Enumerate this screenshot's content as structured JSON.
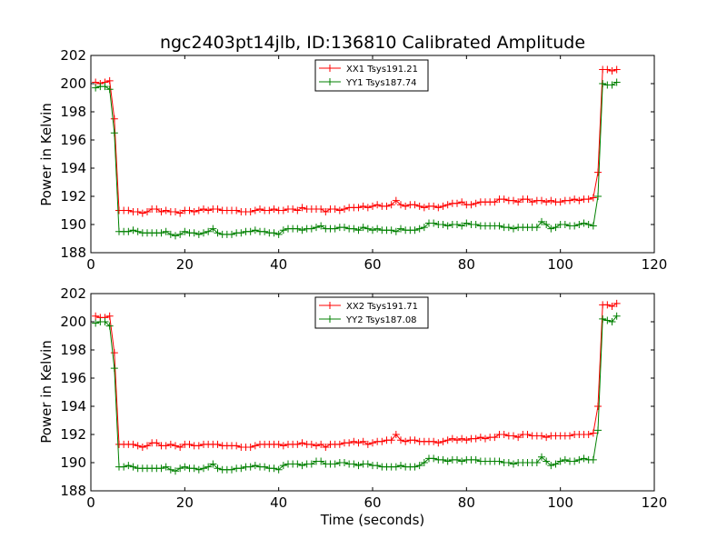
{
  "chart_data": [
    {
      "type": "line",
      "title": "ngc2403pt14jlb, ID:136810 Calibrated Amplitude",
      "xlabel": "",
      "ylabel": "Power in Kelvin",
      "xlim": [
        0,
        120
      ],
      "ylim": [
        188,
        202
      ],
      "xticks": [
        "0",
        "20",
        "40",
        "60",
        "80",
        "100",
        "120"
      ],
      "yticks": [
        "188",
        "190",
        "192",
        "194",
        "196",
        "198",
        "200",
        "202"
      ],
      "grid": false,
      "legend_position": "top-center",
      "series": [
        {
          "name": "XX1 Tsys191.21",
          "color": "#ff0000",
          "x": [
            1,
            2,
            3,
            4,
            5,
            6,
            7,
            8,
            9,
            10,
            11,
            12,
            13,
            14,
            15,
            16,
            17,
            18,
            19,
            20,
            21,
            22,
            23,
            24,
            25,
            26,
            27,
            28,
            29,
            30,
            31,
            32,
            33,
            34,
            35,
            36,
            37,
            38,
            39,
            40,
            41,
            42,
            43,
            44,
            45,
            46,
            47,
            48,
            49,
            50,
            51,
            52,
            53,
            54,
            55,
            56,
            57,
            58,
            59,
            60,
            61,
            62,
            63,
            64,
            65,
            66,
            67,
            68,
            69,
            70,
            71,
            72,
            73,
            74,
            75,
            76,
            77,
            78,
            79,
            80,
            81,
            82,
            83,
            84,
            85,
            86,
            87,
            88,
            89,
            90,
            91,
            92,
            93,
            94,
            95,
            96,
            97,
            98,
            99,
            100,
            101,
            102,
            103,
            104,
            105,
            106,
            107,
            108,
            109,
            110,
            111,
            112
          ],
          "y": [
            200.1,
            200.0,
            200.1,
            200.2,
            197.5,
            191.0,
            191.0,
            191.0,
            190.9,
            190.9,
            190.8,
            190.9,
            191.1,
            191.1,
            190.9,
            191.0,
            190.9,
            190.9,
            190.8,
            191.0,
            191.0,
            190.9,
            191.0,
            191.1,
            191.0,
            191.1,
            191.1,
            191.0,
            191.0,
            191.0,
            191.0,
            190.9,
            190.9,
            190.9,
            191.0,
            191.1,
            191.0,
            191.0,
            191.1,
            191.0,
            191.0,
            191.1,
            191.1,
            191.0,
            191.2,
            191.1,
            191.1,
            191.1,
            191.1,
            190.9,
            191.1,
            191.1,
            191.0,
            191.1,
            191.2,
            191.2,
            191.2,
            191.3,
            191.2,
            191.3,
            191.4,
            191.3,
            191.3,
            191.4,
            191.7,
            191.4,
            191.3,
            191.4,
            191.4,
            191.3,
            191.2,
            191.3,
            191.3,
            191.2,
            191.3,
            191.4,
            191.5,
            191.5,
            191.6,
            191.4,
            191.4,
            191.5,
            191.6,
            191.6,
            191.6,
            191.6,
            191.8,
            191.8,
            191.7,
            191.7,
            191.6,
            191.8,
            191.8,
            191.6,
            191.7,
            191.7,
            191.6,
            191.7,
            191.6,
            191.6,
            191.7,
            191.7,
            191.8,
            191.7,
            191.8,
            191.8,
            191.9,
            193.7,
            201.0,
            201.0,
            200.9,
            201.0
          ]
        },
        {
          "name": "YY1 Tsys187.74",
          "color": "#008000",
          "x": [
            1,
            2,
            3,
            4,
            5,
            6,
            7,
            8,
            9,
            10,
            11,
            12,
            13,
            14,
            15,
            16,
            17,
            18,
            19,
            20,
            21,
            22,
            23,
            24,
            25,
            26,
            27,
            28,
            29,
            30,
            31,
            32,
            33,
            34,
            35,
            36,
            37,
            38,
            39,
            40,
            41,
            42,
            43,
            44,
            45,
            46,
            47,
            48,
            49,
            50,
            51,
            52,
            53,
            54,
            55,
            56,
            57,
            58,
            59,
            60,
            61,
            62,
            63,
            64,
            65,
            66,
            67,
            68,
            69,
            70,
            71,
            72,
            73,
            74,
            75,
            76,
            77,
            78,
            79,
            80,
            81,
            82,
            83,
            84,
            85,
            86,
            87,
            88,
            89,
            90,
            91,
            92,
            93,
            94,
            95,
            96,
            97,
            98,
            99,
            100,
            101,
            102,
            103,
            104,
            105,
            106,
            107,
            108,
            109,
            110,
            111,
            112
          ],
          "y": [
            199.7,
            199.8,
            199.8,
            199.6,
            196.5,
            189.5,
            189.5,
            189.5,
            189.6,
            189.5,
            189.4,
            189.4,
            189.4,
            189.4,
            189.4,
            189.5,
            189.3,
            189.2,
            189.3,
            189.5,
            189.4,
            189.4,
            189.3,
            189.4,
            189.5,
            189.7,
            189.4,
            189.3,
            189.3,
            189.3,
            189.4,
            189.4,
            189.5,
            189.5,
            189.6,
            189.5,
            189.5,
            189.4,
            189.4,
            189.3,
            189.6,
            189.7,
            189.7,
            189.7,
            189.6,
            189.7,
            189.7,
            189.8,
            189.9,
            189.7,
            189.7,
            189.7,
            189.8,
            189.8,
            189.7,
            189.7,
            189.6,
            189.8,
            189.7,
            189.6,
            189.7,
            189.6,
            189.6,
            189.6,
            189.5,
            189.7,
            189.6,
            189.6,
            189.6,
            189.7,
            189.8,
            190.1,
            190.1,
            190.0,
            190.0,
            189.9,
            190.0,
            190.0,
            189.9,
            190.1,
            190.0,
            190.0,
            189.9,
            189.9,
            189.9,
            189.9,
            189.9,
            189.8,
            189.8,
            189.7,
            189.8,
            189.8,
            189.8,
            189.8,
            189.8,
            190.2,
            190.0,
            189.7,
            189.8,
            190.0,
            190.0,
            189.9,
            189.9,
            190.0,
            190.1,
            190.0,
            189.9,
            192.0,
            200.0,
            199.9,
            199.9,
            200.1
          ]
        }
      ]
    },
    {
      "type": "line",
      "title": "",
      "xlabel": "Time (seconds)",
      "ylabel": "Power in Kelvin",
      "xlim": [
        0,
        120
      ],
      "ylim": [
        188,
        202
      ],
      "xticks": [
        "0",
        "20",
        "40",
        "60",
        "80",
        "100",
        "120"
      ],
      "yticks": [
        "188",
        "190",
        "192",
        "194",
        "196",
        "198",
        "200",
        "202"
      ],
      "grid": false,
      "legend_position": "top-center",
      "series": [
        {
          "name": "XX2 Tsys191.71",
          "color": "#ff0000",
          "x": [
            1,
            2,
            3,
            4,
            5,
            6,
            7,
            8,
            9,
            10,
            11,
            12,
            13,
            14,
            15,
            16,
            17,
            18,
            19,
            20,
            21,
            22,
            23,
            24,
            25,
            26,
            27,
            28,
            29,
            30,
            31,
            32,
            33,
            34,
            35,
            36,
            37,
            38,
            39,
            40,
            41,
            42,
            43,
            44,
            45,
            46,
            47,
            48,
            49,
            50,
            51,
            52,
            53,
            54,
            55,
            56,
            57,
            58,
            59,
            60,
            61,
            62,
            63,
            64,
            65,
            66,
            67,
            68,
            69,
            70,
            71,
            72,
            73,
            74,
            75,
            76,
            77,
            78,
            79,
            80,
            81,
            82,
            83,
            84,
            85,
            86,
            87,
            88,
            89,
            90,
            91,
            92,
            93,
            94,
            95,
            96,
            97,
            98,
            99,
            100,
            101,
            102,
            103,
            104,
            105,
            106,
            107,
            108,
            109,
            110,
            111,
            112
          ],
          "y": [
            200.4,
            200.3,
            200.3,
            200.4,
            197.8,
            191.3,
            191.3,
            191.3,
            191.3,
            191.2,
            191.1,
            191.2,
            191.4,
            191.4,
            191.2,
            191.2,
            191.3,
            191.2,
            191.1,
            191.3,
            191.3,
            191.2,
            191.2,
            191.3,
            191.3,
            191.3,
            191.3,
            191.2,
            191.2,
            191.2,
            191.2,
            191.1,
            191.1,
            191.1,
            191.2,
            191.3,
            191.3,
            191.3,
            191.3,
            191.3,
            191.2,
            191.3,
            191.3,
            191.3,
            191.4,
            191.3,
            191.3,
            191.2,
            191.3,
            191.1,
            191.3,
            191.3,
            191.3,
            191.4,
            191.4,
            191.5,
            191.4,
            191.5,
            191.3,
            191.4,
            191.5,
            191.5,
            191.6,
            191.6,
            192.0,
            191.6,
            191.5,
            191.6,
            191.6,
            191.5,
            191.5,
            191.5,
            191.5,
            191.4,
            191.5,
            191.6,
            191.7,
            191.6,
            191.7,
            191.6,
            191.7,
            191.7,
            191.8,
            191.7,
            191.8,
            191.8,
            192.0,
            192.0,
            191.9,
            191.9,
            191.8,
            192.0,
            192.0,
            191.9,
            191.9,
            191.9,
            191.8,
            191.9,
            191.9,
            191.9,
            191.9,
            191.9,
            192.0,
            192.0,
            192.0,
            192.0,
            192.1,
            194.0,
            201.2,
            201.2,
            201.1,
            201.3
          ]
        },
        {
          "name": "YY2 Tsys187.08",
          "color": "#008000",
          "x": [
            1,
            2,
            3,
            4,
            5,
            6,
            7,
            8,
            9,
            10,
            11,
            12,
            13,
            14,
            15,
            16,
            17,
            18,
            19,
            20,
            21,
            22,
            23,
            24,
            25,
            26,
            27,
            28,
            29,
            30,
            31,
            32,
            33,
            34,
            35,
            36,
            37,
            38,
            39,
            40,
            41,
            42,
            43,
            44,
            45,
            46,
            47,
            48,
            49,
            50,
            51,
            52,
            53,
            54,
            55,
            56,
            57,
            58,
            59,
            60,
            61,
            62,
            63,
            64,
            65,
            66,
            67,
            68,
            69,
            70,
            71,
            72,
            73,
            74,
            75,
            76,
            77,
            78,
            79,
            80,
            81,
            82,
            83,
            84,
            85,
            86,
            87,
            88,
            89,
            90,
            91,
            92,
            93,
            94,
            95,
            96,
            97,
            98,
            99,
            100,
            101,
            102,
            103,
            104,
            105,
            106,
            107,
            108,
            109,
            110,
            111,
            112
          ],
          "y": [
            199.9,
            200.0,
            200.0,
            199.7,
            196.7,
            189.7,
            189.7,
            189.8,
            189.7,
            189.6,
            189.6,
            189.6,
            189.6,
            189.6,
            189.6,
            189.7,
            189.5,
            189.4,
            189.6,
            189.7,
            189.6,
            189.6,
            189.5,
            189.6,
            189.7,
            189.9,
            189.6,
            189.5,
            189.5,
            189.5,
            189.6,
            189.6,
            189.7,
            189.7,
            189.8,
            189.7,
            189.7,
            189.6,
            189.6,
            189.5,
            189.8,
            189.9,
            189.9,
            189.9,
            189.8,
            189.9,
            189.9,
            190.1,
            190.1,
            189.9,
            189.9,
            189.9,
            190.0,
            190.0,
            189.9,
            189.9,
            189.8,
            189.9,
            189.9,
            189.8,
            189.8,
            189.7,
            189.7,
            189.7,
            189.7,
            189.8,
            189.7,
            189.7,
            189.7,
            189.8,
            190.0,
            190.3,
            190.3,
            190.2,
            190.2,
            190.1,
            190.2,
            190.2,
            190.1,
            190.2,
            190.2,
            190.2,
            190.1,
            190.1,
            190.1,
            190.1,
            190.1,
            190.0,
            190.0,
            189.9,
            190.0,
            190.0,
            190.0,
            190.0,
            190.0,
            190.4,
            190.1,
            189.8,
            189.9,
            190.1,
            190.2,
            190.1,
            190.1,
            190.2,
            190.3,
            190.2,
            190.2,
            192.3,
            200.2,
            200.1,
            200.0,
            200.4
          ]
        }
      ]
    }
  ]
}
